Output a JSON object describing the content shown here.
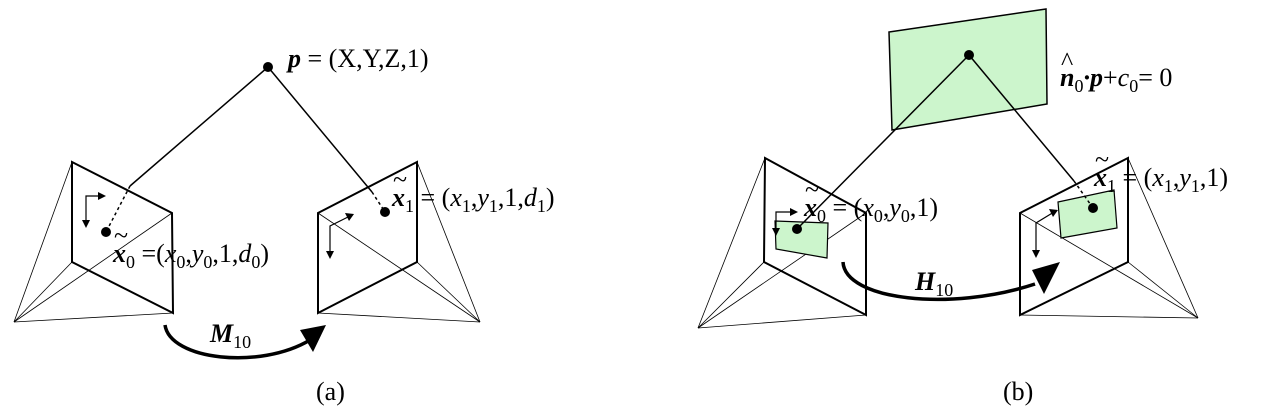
{
  "panel_a": {
    "caption": "(a)",
    "point_label": {
      "sym": "p",
      "rest": " = (X,Y,Z,1)"
    },
    "x0_label": {
      "sym": "x",
      "sub": "0",
      "eq": " =(",
      "v1": "x",
      "v1sub": "0",
      "c1": ",",
      "v2": "y",
      "v2sub": "0",
      "c2": ",1,",
      "v3": "d",
      "v3sub": "0",
      "close": ")"
    },
    "x1_label": {
      "sym": "x",
      "sub": "1",
      "eq": " = (",
      "v1": "x",
      "v1sub": "1",
      "c1": ",",
      "v2": "y",
      "v2sub": "1",
      "c2": ",1,",
      "v3": "d",
      "v3sub": "1",
      "close": ")"
    },
    "transform": {
      "sym": "M",
      "sub": "10"
    }
  },
  "panel_b": {
    "caption": "(b)",
    "plane_label": {
      "hat": "^",
      "n": "n",
      "nsub": "0",
      "dot": "·",
      "p": "p",
      "plus": "+",
      "c": "c",
      "csub": "0",
      "eq": "= 0"
    },
    "x0_label": {
      "sym": "x",
      "sub": "0",
      "eq": " = (",
      "v1": "x",
      "v1sub": "0",
      "c1": ",",
      "v2": "y",
      "v2sub": "0",
      "close": ",1)"
    },
    "x1_label": {
      "sym": "x",
      "sub": "1",
      "eq": " = (",
      "v1": "x",
      "v1sub": "1",
      "c1": ",",
      "v2": "y",
      "v2sub": "1",
      "close": ",1)"
    },
    "transform": {
      "sym": "H",
      "sub": "10"
    }
  },
  "colors": {
    "plane_fill": "#ccf5cc",
    "stroke": "#000000"
  }
}
